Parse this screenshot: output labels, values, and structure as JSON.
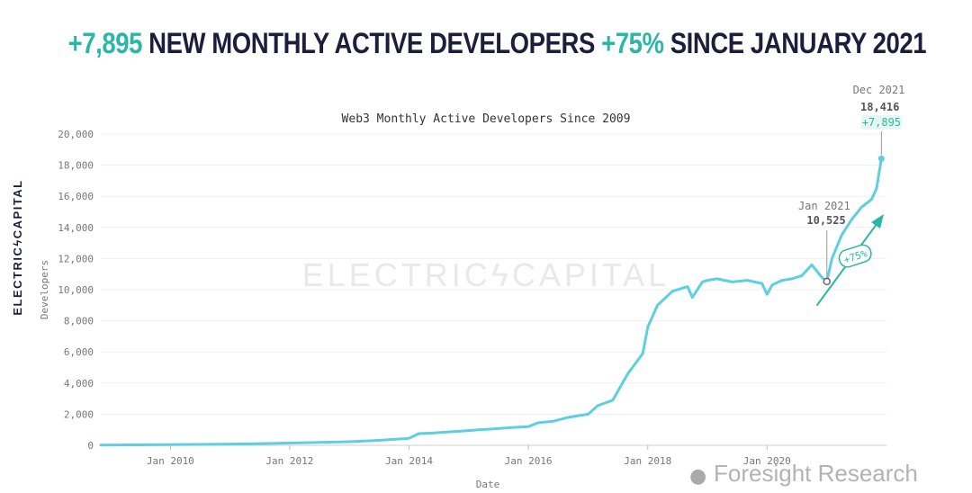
{
  "headline": {
    "part1": "+7,895",
    "part2": " NEW MONTHLY ACTIVE DEVELOPERS ",
    "part3": "+75%",
    "part4": " SINCE JANUARY 2021"
  },
  "side_logo": "ELECTRICϟCAPITAL",
  "watermark": "ELECTRICϟCAPITAL",
  "credit": "Foresight Research",
  "colors": {
    "line": "#5ecfe0",
    "accent": "#2bb7a8",
    "headline": "#1b1f3b",
    "axis_text": "#777777"
  },
  "chart_data": {
    "type": "line",
    "title": "Web3 Monthly Active Developers Since 2009",
    "xlabel": "Date",
    "ylabel": "Developers",
    "ylim": [
      0,
      20000
    ],
    "xlim": [
      "2008-11-01",
      "2022-01-01"
    ],
    "y_ticks": [
      0,
      2000,
      4000,
      6000,
      8000,
      10000,
      12000,
      14000,
      16000,
      18000,
      20000
    ],
    "y_tick_labels": [
      "0",
      "2,000",
      "4,000",
      "6,000",
      "8,000",
      "10,000",
      "12,000",
      "14,000",
      "16,000",
      "18,000",
      "20,000"
    ],
    "x_ticks": [
      "2010-01-01",
      "2012-01-01",
      "2014-01-01",
      "2016-01-01",
      "2018-01-01",
      "2020-01-01"
    ],
    "x_tick_labels": [
      "Jan 2010",
      "Jan 2012",
      "Jan 2014",
      "Jan 2016",
      "Jan 2018",
      "Jan 2020"
    ],
    "grid": true,
    "series": [
      {
        "x": [
          "2008-11-01",
          "2009-06-01",
          "2010-06-01",
          "2011-06-01",
          "2012-06-01",
          "2013-01-01",
          "2013-06-01",
          "2013-10-01",
          "2014-01-01",
          "2014-03-01",
          "2014-06-01",
          "2015-01-01",
          "2015-03-01",
          "2015-06-01",
          "2015-10-01",
          "2016-01-01",
          "2016-03-01",
          "2016-06-01",
          "2016-09-01",
          "2017-01-01",
          "2017-03-01",
          "2017-06-01",
          "2017-09-01",
          "2017-12-01",
          "2018-01-01",
          "2018-03-01",
          "2018-06-01",
          "2018-09-01",
          "2018-10-01",
          "2018-12-01",
          "2019-01-01",
          "2019-03-01",
          "2019-06-01",
          "2019-09-01",
          "2019-12-01",
          "2020-01-01",
          "2020-02-01",
          "2020-04-01",
          "2020-06-01",
          "2020-08-01",
          "2020-10-01",
          "2020-12-01",
          "2021-01-01",
          "2021-02-01",
          "2021-04-01",
          "2021-06-01",
          "2021-08-01",
          "2021-10-01",
          "2021-11-01",
          "2021-12-01"
        ],
        "y": [
          20,
          30,
          60,
          100,
          180,
          230,
          300,
          380,
          450,
          750,
          800,
          950,
          1000,
          1050,
          1150,
          1200,
          1450,
          1550,
          1800,
          2000,
          2550,
          2900,
          4600,
          5900,
          7600,
          9000,
          9900,
          10200,
          9500,
          10500,
          10600,
          10700,
          10500,
          10600,
          10400,
          9700,
          10300,
          10600,
          10700,
          10900,
          11600,
          10800,
          10525,
          12000,
          13500,
          14500,
          15300,
          15800,
          16500,
          18416
        ]
      }
    ],
    "annotations": [
      {
        "label": "Dec 2021",
        "value": "18,416",
        "change": "+7,895",
        "x": "2021-12-01",
        "y": 18416
      },
      {
        "label": "Jan 2021",
        "value": "10,525",
        "x": "2021-01-01",
        "y": 10525
      },
      {
        "text": "+75%"
      }
    ]
  }
}
